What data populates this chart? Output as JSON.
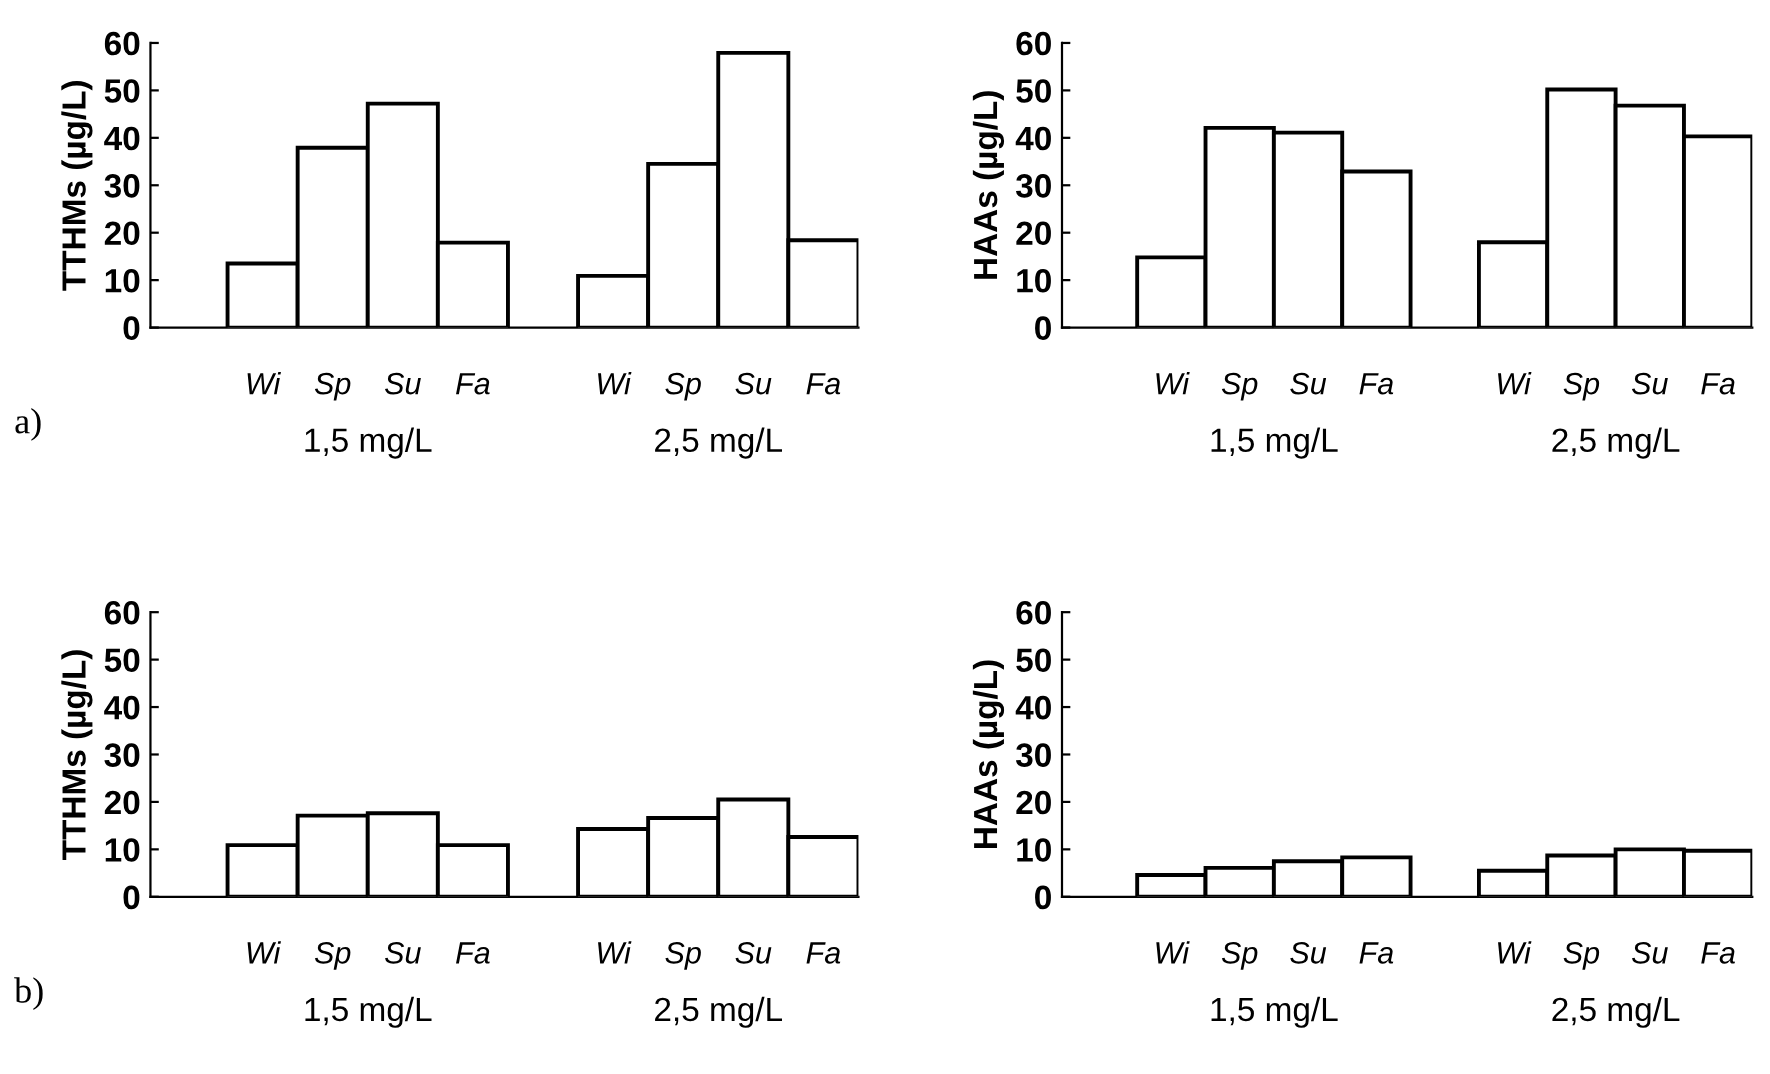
{
  "chart_data": [
    {
      "type": "bar",
      "ylabel": "TTHMs (µg/L)",
      "categories": [
        "Wi",
        "Sp",
        "Su",
        "Fa",
        null,
        "Wi",
        "Sp",
        "Su",
        "Fa"
      ],
      "values": [
        13.5,
        37.9,
        47.2,
        17.9,
        null,
        10.9,
        34.5,
        57.9,
        18.4
      ],
      "color": "#ffffff",
      "ylim": [
        0,
        60
      ],
      "yticks": [
        0,
        10,
        20,
        30,
        40,
        50,
        60
      ],
      "grid": false,
      "legend": false,
      "annotations": [
        "1,5 mg/L",
        "2,5 mg/L",
        "a)"
      ]
    },
    {
      "type": "bar",
      "ylabel": "HAAs (µg/L)",
      "categories": [
        "Wi",
        "Sp",
        "Su",
        "Fa",
        null,
        "Wi",
        "Sp",
        "Su",
        "Fa"
      ],
      "values": [
        14.8,
        42.1,
        41.1,
        32.9,
        null,
        18.0,
        50.2,
        46.8,
        40.3
      ],
      "color": "#ffffff",
      "ylim": [
        0,
        60
      ],
      "yticks": [
        0,
        10,
        20,
        30,
        40,
        50,
        60
      ],
      "grid": false,
      "legend": false,
      "annotations": [
        "1,5 mg/L",
        "2,5 mg/L"
      ]
    },
    {
      "type": "bar",
      "ylabel": "TTHMs (µg/L)",
      "categories": [
        "Wi",
        "Sp",
        "Su",
        "Fa",
        null,
        "Wi",
        "Sp",
        "Su",
        "Fa"
      ],
      "values": [
        10.9,
        17.1,
        17.6,
        10.9,
        null,
        14.3,
        16.6,
        20.5,
        12.6
      ],
      "color": "#ffffff",
      "ylim": [
        0,
        60
      ],
      "yticks": [
        0,
        10,
        20,
        30,
        40,
        50,
        60
      ],
      "grid": false,
      "legend": false,
      "annotations": [
        "1,5 mg/L",
        "2,5 mg/L",
        "b)"
      ]
    },
    {
      "type": "bar",
      "ylabel": "HAAs (µg/L)",
      "categories": [
        "Wi",
        "Sp",
        "Su",
        "Fa",
        null,
        "Wi",
        "Sp",
        "Su",
        "Fa"
      ],
      "values": [
        4.6,
        6.1,
        7.5,
        8.3,
        null,
        5.5,
        8.7,
        10.0,
        9.7
      ],
      "color": "#ffffff",
      "ylim": [
        0,
        60
      ],
      "yticks": [
        0,
        10,
        20,
        30,
        40,
        50,
        60
      ],
      "grid": false,
      "legend": false,
      "annotations": [
        "1,5 mg/L",
        "2,5 mg/L"
      ]
    }
  ]
}
